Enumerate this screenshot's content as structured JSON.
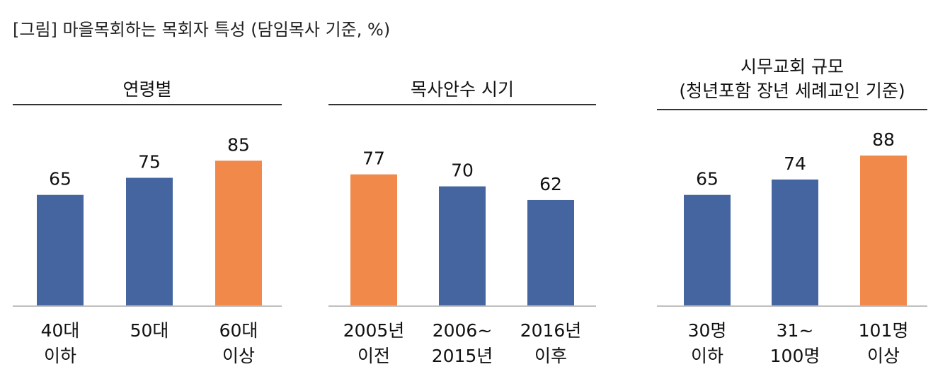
{
  "figure_title": "[그림] 마을목회하는 목회자 특성 (담임목사 기준, %)",
  "colors": {
    "normal": "#4465A0",
    "highlight": "#F0894A",
    "axis": "#BFBFBF",
    "rule": "#333333"
  },
  "chart_data": [
    {
      "type": "bar",
      "title": "연령별",
      "categories": [
        [
          "40대",
          "이하"
        ],
        [
          "50대"
        ],
        [
          "60대",
          "이상"
        ]
      ],
      "values": [
        65,
        75,
        85
      ],
      "highlight": [
        false,
        false,
        true
      ],
      "ylim": [
        0,
        100
      ],
      "grid": false,
      "legend": "none"
    },
    {
      "type": "bar",
      "title": "목사안수 시기",
      "categories": [
        [
          "2005년",
          "이전"
        ],
        [
          "2006~",
          "2015년"
        ],
        [
          "2016년",
          "이후"
        ]
      ],
      "values": [
        77,
        70,
        62
      ],
      "highlight": [
        true,
        false,
        false
      ],
      "ylim": [
        0,
        100
      ],
      "grid": false,
      "legend": "none"
    },
    {
      "type": "bar",
      "title": "시무교회 규모\n(청년포함 장년 세례교인 기준)",
      "categories": [
        [
          "30명",
          "이하"
        ],
        [
          "31~",
          "100명"
        ],
        [
          "101명",
          "이상"
        ]
      ],
      "values": [
        65,
        74,
        88
      ],
      "highlight": [
        false,
        false,
        true
      ],
      "ylim": [
        0,
        100
      ],
      "grid": false,
      "legend": "none"
    }
  ]
}
